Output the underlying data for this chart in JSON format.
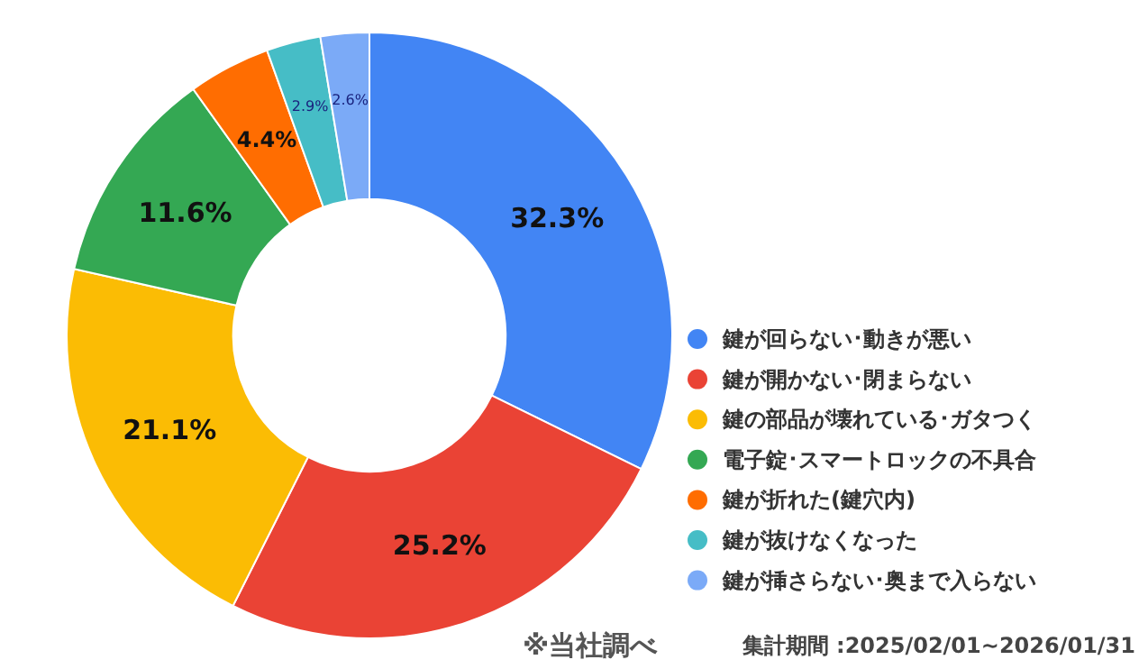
{
  "chart_data": {
    "type": "donut",
    "categories": [
      "鍵が回らない･動きが悪い",
      "鍵が開かない･閉まらない",
      "鍵の部品が壊れている･ガタつく",
      "電子錠･スマートロックの不具合",
      "鍵が折れた(鍵穴内)",
      "鍵が抜けなくなった",
      "鍵が挿さらない･奥まで入らない"
    ],
    "values": [
      32.3,
      25.2,
      21.1,
      11.6,
      4.4,
      2.9,
      2.6
    ],
    "colors": [
      "#4285f4",
      "#ea4335",
      "#fbbc04",
      "#34a853",
      "#ff6d01",
      "#46bdc6",
      "#7baaf7"
    ],
    "value_labels": [
      "32.3%",
      "25.2%",
      "21.1%",
      "11.6%",
      "4.4%",
      "2.9%",
      "2.6%"
    ],
    "legend": "bottom right",
    "annotations": [
      "※当社調べ",
      "集計期間 :2025/02/01~2026/01/31"
    ]
  }
}
